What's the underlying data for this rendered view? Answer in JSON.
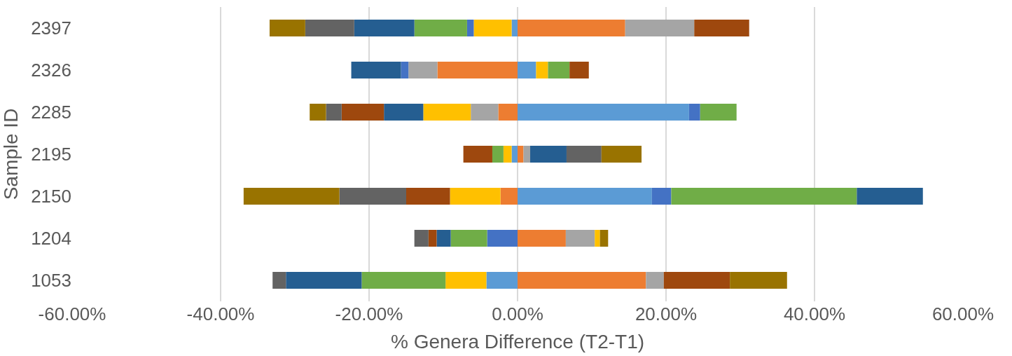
{
  "chart_data": {
    "type": "bar",
    "orientation": "horizontal",
    "stacked": true,
    "xlabel": "% Genera Difference (T2-T1)",
    "ylabel": "Sample ID",
    "categories": [
      "2397",
      "2326",
      "2285",
      "2195",
      "2150",
      "1204",
      "1053"
    ],
    "series": [
      {
        "color": "#5b9bd5",
        "values": [
          -0.8,
          2.5,
          23.1,
          -0.8,
          18.1,
          null,
          -4.2
        ]
      },
      {
        "color": "#ed7d31",
        "values": [
          14.5,
          -10.8,
          -2.6,
          0.8,
          -2.3,
          6.5,
          17.3
        ]
      },
      {
        "color": "#a5a5a5",
        "values": [
          9.3,
          -3.9,
          -3.7,
          0.9,
          null,
          3.9,
          2.4
        ]
      },
      {
        "color": "#ffc000",
        "values": [
          -5.1,
          1.6,
          -6.4,
          -1.1,
          -6.8,
          0.7,
          -5.5
        ]
      },
      {
        "color": "#4472c4",
        "values": [
          -0.9,
          -1.0,
          1.5,
          null,
          2.6,
          -4.1,
          null
        ]
      },
      {
        "color": "#70ad47",
        "values": [
          -7.1,
          2.9,
          4.9,
          -1.5,
          25.0,
          -4.9,
          -11.3
        ]
      },
      {
        "color": "#255e91",
        "values": [
          -8.1,
          -6.7,
          -5.3,
          4.9,
          8.9,
          -1.9,
          -10.2
        ]
      },
      {
        "color": "#9e480e",
        "values": [
          7.4,
          2.6,
          -5.7,
          -3.9,
          -5.9,
          -1.1,
          8.9
        ]
      },
      {
        "color": "#636363",
        "values": [
          -6.6,
          null,
          -2.1,
          4.7,
          -9.0,
          -1.9,
          -1.8
        ]
      },
      {
        "color": "#997300",
        "values": [
          -4.8,
          null,
          -2.2,
          5.4,
          -12.9,
          1.1,
          7.7
        ]
      }
    ],
    "xlim": [
      -60,
      60
    ],
    "xticks": [
      {
        "value": -60,
        "label": "-60.00%"
      },
      {
        "value": -40,
        "label": "-40.00%"
      },
      {
        "value": -20,
        "label": "-20.00%"
      },
      {
        "value": 0,
        "label": "0.00%"
      },
      {
        "value": 20,
        "label": "20.00%"
      },
      {
        "value": 40,
        "label": "40.00%"
      },
      {
        "value": 60,
        "label": "60.00%"
      }
    ],
    "grid": "x"
  }
}
